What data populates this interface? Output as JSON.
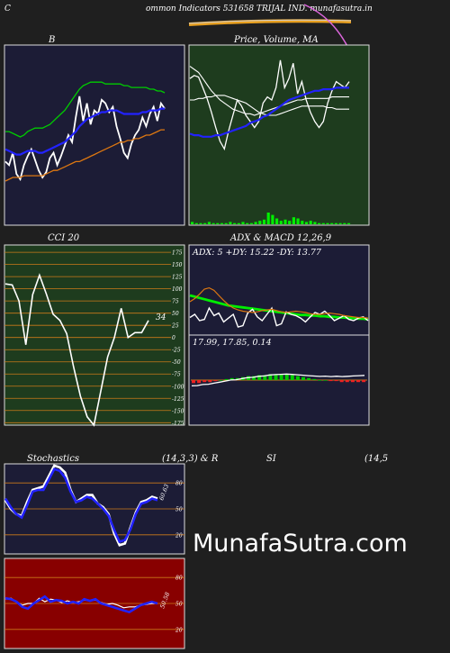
{
  "header": {
    "title": "ommon Indicators 531658 TRIJAL IND. munafasutra.in",
    "left_letter": "C"
  },
  "watermark": "MunafaSutra.com",
  "colors": {
    "page_bg": "#1f1f1f",
    "panel_navy": "#1c1c36",
    "panel_green": "#1e3c1e",
    "panel_red": "#880000",
    "grid_orange": "#cc7a1a"
  },
  "chart_data": [
    {
      "id": "bollinger",
      "type": "line",
      "title": "B",
      "ylim": [
        0,
        100
      ],
      "series": [
        {
          "color": "#ffffff",
          "values": [
            35,
            33,
            40,
            28,
            25,
            33,
            38,
            42,
            36,
            30,
            26,
            29,
            37,
            40,
            33,
            38,
            44,
            50,
            46,
            60,
            72,
            58,
            68,
            56,
            64,
            62,
            70,
            68,
            63,
            66,
            55,
            48,
            40,
            37,
            45,
            50,
            53,
            60,
            55,
            62,
            66,
            58,
            68,
            65
          ]
        },
        {
          "color": "#2222ff",
          "values": [
            42,
            41,
            40,
            39,
            39,
            40,
            41,
            41,
            41,
            40,
            40,
            41,
            42,
            43,
            44,
            45,
            46,
            48,
            50,
            52,
            55,
            57,
            59,
            60,
            61,
            62,
            63,
            63,
            64,
            64,
            64,
            63,
            62,
            62,
            62,
            62,
            62,
            63,
            63,
            64,
            64,
            64,
            65,
            65
          ]
        },
        {
          "color": "#00cc00",
          "values": [
            52,
            52,
            51,
            50,
            49,
            50,
            52,
            53,
            54,
            54,
            54,
            55,
            56,
            58,
            60,
            62,
            64,
            67,
            70,
            73,
            76,
            78,
            79,
            80,
            80,
            80,
            80,
            79,
            79,
            79,
            79,
            79,
            78,
            78,
            77,
            77,
            77,
            77,
            77,
            76,
            76,
            75,
            75,
            74
          ]
        },
        {
          "color": "#dd7711",
          "values": [
            24,
            25,
            26,
            26,
            26,
            27,
            27,
            27,
            27,
            27,
            27,
            28,
            29,
            30,
            30,
            31,
            32,
            33,
            34,
            35,
            35,
            36,
            37,
            38,
            39,
            40,
            41,
            42,
            43,
            44,
            45,
            46,
            46,
            47,
            47,
            48,
            48,
            49,
            50,
            50,
            51,
            52,
            53,
            53
          ]
        }
      ]
    },
    {
      "id": "price-volume",
      "type": "line",
      "title": "Price,  Volume,  MA",
      "ylim": [
        0,
        100
      ],
      "series": [
        {
          "color": "#ffffff",
          "values": [
            84,
            86,
            85,
            78,
            71,
            62,
            52,
            43,
            38,
            50,
            60,
            70,
            66,
            60,
            56,
            52,
            56,
            68,
            72,
            70,
            78,
            96,
            78,
            84,
            94,
            74,
            82,
            70,
            62,
            56,
            52,
            56,
            68,
            76,
            82,
            80,
            78,
            82
          ]
        },
        {
          "color": "#ffffff",
          "values": [
            92,
            90,
            88,
            84,
            80,
            76,
            73,
            70,
            68,
            66,
            64,
            63,
            62,
            61,
            61,
            60,
            61,
            62,
            63,
            64,
            65,
            66,
            67,
            68,
            69,
            70,
            70,
            71,
            71,
            71,
            71,
            71,
            71,
            72,
            72,
            72,
            72,
            72
          ]
        },
        {
          "color": "#ffffff",
          "values": [
            70,
            70,
            71,
            71,
            72,
            72,
            73,
            73,
            73,
            72,
            71,
            70,
            69,
            68,
            66,
            64,
            62,
            61,
            60,
            60,
            60,
            61,
            62,
            63,
            64,
            65,
            66,
            66,
            66,
            66,
            66,
            66,
            65,
            65,
            64,
            64,
            64,
            64
          ]
        },
        {
          "color": "#2222ff",
          "values": [
            48,
            47,
            47,
            46,
            46,
            46,
            47,
            47,
            48,
            49,
            50,
            51,
            52,
            53,
            55,
            56,
            57,
            59,
            60,
            62,
            64,
            66,
            68,
            70,
            71,
            72,
            73,
            74,
            75,
            76,
            76,
            77,
            77,
            77,
            78,
            78,
            78,
            78
          ]
        }
      ],
      "volume": [
        2,
        1,
        1,
        1,
        2,
        1,
        1,
        1,
        1,
        2,
        1,
        1,
        2,
        1,
        1,
        2,
        3,
        4,
        10,
        8,
        5,
        3,
        4,
        3,
        6,
        5,
        3,
        2,
        3,
        2,
        1,
        1,
        1,
        1,
        1,
        1,
        1,
        1
      ]
    },
    {
      "id": "cci",
      "type": "line",
      "title": "CCI 20",
      "ylim": [
        -180,
        190
      ],
      "ticks": [
        175,
        150,
        125,
        100,
        75,
        50,
        25,
        0,
        -25,
        -50,
        -75,
        -100,
        -125,
        -150,
        -175
      ],
      "last_value_label": "34",
      "series": [
        {
          "color": "#ffffff",
          "values": [
            110,
            108,
            75,
            -15,
            88,
            128,
            90,
            48,
            35,
            8,
            -60,
            -120,
            -163,
            -180,
            -110,
            -40,
            0,
            60,
            0,
            10,
            10,
            35
          ]
        }
      ]
    },
    {
      "id": "adx-macd",
      "type": "line",
      "title": "ADX  & MACD 12,26,9",
      "adx_label": "ADX: 5 +DY: 15.22 -DY: 13.77",
      "macd_label": "17.99,  17.85,  0.14",
      "ylim": [
        0,
        100
      ],
      "series": [
        {
          "color": "#00ee00",
          "values": [
            60,
            58,
            56,
            54,
            52,
            50,
            48,
            46,
            44,
            43,
            42,
            41,
            40,
            39,
            38,
            37,
            36,
            35,
            34,
            33,
            32,
            31,
            30,
            29,
            29,
            28,
            28,
            27,
            27,
            26,
            26,
            25,
            25,
            24,
            24,
            23,
            23,
            22
          ]
        },
        {
          "color": "#ffffff",
          "values": [
            25,
            30,
            20,
            22,
            40,
            28,
            32,
            18,
            24,
            30,
            10,
            12,
            32,
            38,
            26,
            20,
            30,
            40,
            12,
            15,
            34,
            30,
            28,
            24,
            18,
            26,
            33,
            30,
            35,
            28,
            20,
            24,
            28,
            22,
            20,
            24,
            26,
            20
          ]
        },
        {
          "color": "#dd7711",
          "values": [
            50,
            55,
            62,
            70,
            72,
            68,
            60,
            52,
            45,
            40,
            37,
            35,
            34,
            33,
            34,
            36,
            37,
            38,
            36,
            34,
            33,
            34,
            35,
            34,
            33,
            31,
            30,
            30,
            31,
            32,
            31,
            30,
            28,
            27,
            26,
            25,
            25,
            24
          ]
        }
      ],
      "macd": [
        -3,
        -3,
        -2,
        -2,
        -1,
        0,
        1,
        2,
        2,
        3,
        4,
        4,
        5,
        5,
        6,
        6,
        6,
        6,
        5,
        4,
        3,
        2,
        1,
        0,
        0,
        -1,
        -1,
        -2,
        -2,
        -2,
        -2,
        -2
      ]
    },
    {
      "id": "stochastics",
      "type": "line",
      "title": "Stochastics",
      "params": "(14,3,3) & R",
      "ylim": [
        0,
        100
      ],
      "ticks": [
        80,
        50,
        20
      ],
      "last_value_label": "60.63",
      "series": [
        {
          "color": "#ffffff",
          "values": [
            60,
            50,
            44,
            42,
            58,
            72,
            74,
            76,
            88,
            100,
            98,
            92,
            72,
            58,
            62,
            66,
            66,
            56,
            52,
            44,
            22,
            8,
            10,
            28,
            46,
            58,
            60,
            64,
            62
          ]
        },
        {
          "color": "#2222ff",
          "values": [
            62,
            52,
            44,
            40,
            54,
            70,
            72,
            72,
            84,
            96,
            94,
            86,
            70,
            58,
            60,
            64,
            62,
            56,
            50,
            42,
            26,
            12,
            14,
            26,
            44,
            56,
            58,
            62,
            60
          ]
        }
      ]
    },
    {
      "id": "rsi",
      "type": "line",
      "title": "SI",
      "params": "(14,5",
      "ylim": [
        0,
        100
      ],
      "ticks": [
        80,
        50,
        20
      ],
      "last_value_label": "50.58",
      "series": [
        {
          "color": "#ffffff",
          "values": [
            55,
            56,
            52,
            48,
            50,
            50,
            56,
            52,
            55,
            54,
            51,
            53,
            51,
            52,
            54,
            53,
            54,
            51,
            49,
            50,
            48,
            45,
            46,
            46,
            48,
            49,
            50,
            50
          ]
        },
        {
          "color": "#2222ff",
          "values": [
            56,
            55,
            52,
            46,
            44,
            50,
            54,
            58,
            52,
            54,
            53,
            50,
            52,
            50,
            55,
            53,
            55,
            50,
            48,
            46,
            44,
            42,
            40,
            44,
            48,
            50,
            52,
            50
          ]
        }
      ]
    }
  ]
}
